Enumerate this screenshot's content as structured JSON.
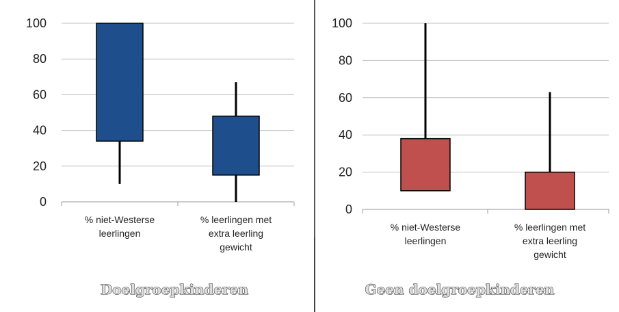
{
  "chart_data": [
    {
      "type": "box",
      "title": "Doelgroepkinderen",
      "categories": [
        "% niet-Westerse leerlingen",
        "% leerlingen met extra leerling gewicht"
      ],
      "category_lines": [
        [
          "% niet-Westerse",
          "leerlingen"
        ],
        [
          "% leerlingen met",
          "extra leerling",
          "gewicht"
        ]
      ],
      "series": [
        {
          "values": [
            {
              "min": 10,
              "q1": 34,
              "q3": 100,
              "max": 100
            },
            {
              "min": 0,
              "q1": 15,
              "q3": 48,
              "max": 67
            }
          ]
        }
      ],
      "ylim": [
        0,
        100
      ],
      "yticks": [
        0,
        20,
        40,
        60,
        80,
        100
      ],
      "grid": true,
      "color": "#1f4e8c"
    },
    {
      "type": "box",
      "title": "Geen doelgroepkinderen",
      "categories": [
        "% niet-Westerse leerlingen",
        "% leerlingen met extra leerling gewicht"
      ],
      "category_lines": [
        [
          "% niet-Westerse",
          "leerlingen"
        ],
        [
          "% leerlingen met",
          "extra leerling",
          "gewicht"
        ]
      ],
      "series": [
        {
          "values": [
            {
              "min": 10,
              "q1": 10,
              "q3": 38,
              "max": 100
            },
            {
              "min": 0,
              "q1": 0,
              "q3": 20,
              "max": 63
            }
          ]
        }
      ],
      "ylim": [
        0,
        100
      ],
      "yticks": [
        0,
        20,
        40,
        60,
        80,
        100
      ],
      "grid": true,
      "color": "#c0504d"
    }
  ]
}
